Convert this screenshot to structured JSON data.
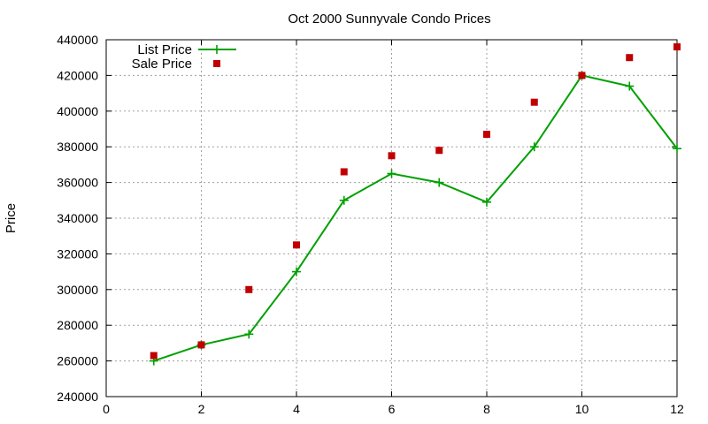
{
  "chart_data": {
    "type": "line",
    "title": "Oct 2000 Sunnyvale Condo Prices",
    "xlabel": "",
    "ylabel": "Price",
    "xlim": [
      0,
      12
    ],
    "ylim": [
      240000,
      440000
    ],
    "xticks": [
      "0",
      "2",
      "4",
      "6",
      "8",
      "10",
      "12"
    ],
    "yticks": [
      "240000",
      "260000",
      "280000",
      "300000",
      "320000",
      "340000",
      "360000",
      "380000",
      "400000",
      "420000",
      "440000"
    ],
    "grid": true,
    "legend_position": "top-left",
    "series": [
      {
        "name": "List Price",
        "style": "linespoints",
        "marker": "plus",
        "color": "#00a000",
        "x": [
          1,
          2,
          3,
          4,
          5,
          6,
          7,
          8,
          9,
          10,
          11,
          12
        ],
        "y": [
          260000,
          269000,
          275000,
          310000,
          350000,
          365000,
          360000,
          349000,
          380000,
          420000,
          414000,
          379000
        ]
      },
      {
        "name": "Sale Price",
        "style": "points",
        "marker": "square",
        "color": "#c00000",
        "x": [
          1,
          2,
          3,
          4,
          5,
          6,
          7,
          8,
          9,
          10,
          11,
          12
        ],
        "y": [
          263000,
          269000,
          300000,
          325000,
          366000,
          375000,
          378000,
          387000,
          405000,
          420000,
          430000,
          436000
        ]
      }
    ]
  }
}
